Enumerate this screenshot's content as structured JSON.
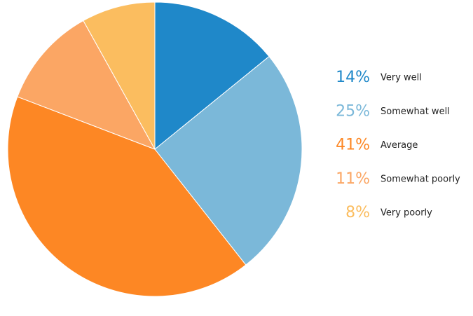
{
  "chart_data": {
    "type": "pie",
    "categories": [
      "Very well",
      "Somewhat well",
      "Average",
      "Somewhat poorly",
      "Very poorly"
    ],
    "values": [
      14,
      25,
      41,
      11,
      8
    ],
    "value_labels": [
      "14%",
      "25%",
      "41%",
      "11%",
      "8%"
    ],
    "colors": [
      "#1f88c9",
      "#7bb8d9",
      "#fd8724",
      "#fba664",
      "#fbbd5f"
    ]
  }
}
